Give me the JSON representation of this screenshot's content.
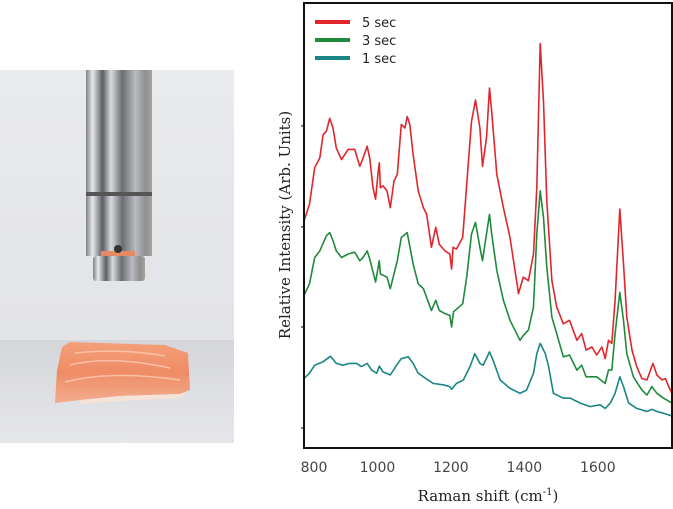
{
  "photo": {
    "description_icon": "raman-probe-over-salmon-photo"
  },
  "chart_data": {
    "type": "line",
    "title": "",
    "xlabel": "Raman shift (cm",
    "xlabel_sup": "-1",
    "xlabel_close": ")",
    "ylabel": "Relative Intensity (Arb. Units)",
    "xlim": [
      800,
      1802
    ],
    "ylim": [
      0,
      100
    ],
    "xticks": [
      800,
      1000,
      1200,
      1400,
      1600
    ],
    "xtick_labels": [
      "800",
      "1000",
      "1200",
      "1400",
      "1600"
    ],
    "yticks": [
      4.5,
      27.2,
      49.7,
      72.4
    ],
    "ytick_labels": [],
    "grid": false,
    "legend_placement": "top-left",
    "series": [
      {
        "name": "5 sec",
        "color": "#e0262b",
        "x": [
          800,
          815,
          829,
          843,
          852,
          861,
          870,
          879,
          888,
          902,
          920,
          938,
          952,
          961,
          972,
          979,
          988,
          995,
          1002,
          1005,
          1008,
          1015,
          1026,
          1035,
          1045,
          1054,
          1065,
          1075,
          1081,
          1088,
          1097,
          1111,
          1125,
          1134,
          1147,
          1159,
          1168,
          1184,
          1197,
          1202,
          1206,
          1215,
          1232,
          1243,
          1256,
          1267,
          1279,
          1286,
          1297,
          1305,
          1311,
          1325,
          1343,
          1361,
          1384,
          1397,
          1411,
          1425,
          1434,
          1443,
          1452,
          1461,
          1475,
          1488,
          1506,
          1523,
          1543,
          1556,
          1568,
          1584,
          1597,
          1611,
          1620,
          1629,
          1638,
          1647,
          1660,
          1670,
          1679,
          1693,
          1706,
          1720,
          1734,
          1750,
          1761,
          1775,
          1784,
          1793,
          1802
        ],
        "y": [
          51.0,
          54.8,
          63.0,
          65.2,
          70.4,
          71.2,
          74.1,
          71.9,
          67.4,
          64.8,
          67.1,
          67.1,
          63.3,
          65.2,
          67.8,
          65.2,
          58.5,
          55.9,
          62.2,
          64.1,
          58.5,
          58.9,
          57.8,
          54.0,
          60.0,
          61.5,
          72.7,
          71.9,
          74.5,
          72.7,
          66.0,
          57.8,
          54.0,
          52.5,
          45.1,
          49.6,
          45.8,
          44.3,
          43.6,
          40.2,
          45.1,
          44.7,
          47.3,
          59.2,
          73.4,
          78.2,
          71.9,
          63.3,
          69.7,
          80.9,
          75.6,
          61.5,
          54.0,
          47.3,
          34.7,
          38.4,
          37.6,
          43.6,
          58.5,
          90.9,
          77.9,
          55.5,
          37.6,
          31.7,
          27.9,
          28.7,
          24.2,
          25.7,
          22.0,
          22.7,
          20.9,
          22.7,
          20.1,
          24.2,
          23.5,
          33.2,
          53.7,
          41.4,
          29.4,
          22.0,
          18.3,
          15.6,
          15.3,
          19.0,
          16.4,
          15.3,
          15.6,
          13.8,
          12.3
        ]
      },
      {
        "name": "3 sec",
        "color": "#1f8a3c",
        "x": [
          800,
          815,
          829,
          843,
          861,
          870,
          879,
          888,
          902,
          920,
          938,
          952,
          961,
          972,
          979,
          995,
          1005,
          1008,
          1026,
          1035,
          1054,
          1065,
          1081,
          1097,
          1111,
          1125,
          1147,
          1159,
          1168,
          1184,
          1197,
          1202,
          1207,
          1232,
          1243,
          1256,
          1267,
          1279,
          1286,
          1297,
          1305,
          1311,
          1325,
          1343,
          1361,
          1388,
          1397,
          1411,
          1425,
          1434,
          1443,
          1452,
          1461,
          1475,
          1488,
          1506,
          1523,
          1543,
          1556,
          1568,
          1597,
          1620,
          1629,
          1638,
          1647,
          1660,
          1670,
          1679,
          1697,
          1720,
          1734,
          1747,
          1761,
          1779,
          1802
        ],
        "y": [
          34.3,
          36.9,
          42.8,
          44.3,
          47.7,
          48.4,
          46.6,
          44.3,
          42.8,
          43.6,
          44.0,
          42.1,
          42.8,
          44.3,
          42.5,
          37.3,
          42.1,
          39.1,
          38.4,
          35.8,
          42.1,
          47.3,
          48.4,
          41.4,
          36.9,
          35.8,
          30.9,
          33.2,
          30.9,
          30.2,
          29.8,
          27.2,
          30.6,
          32.4,
          38.4,
          48.1,
          50.7,
          45.1,
          42.1,
          48.1,
          52.5,
          48.1,
          39.9,
          33.2,
          28.7,
          24.2,
          25.3,
          26.5,
          31.7,
          48.1,
          57.8,
          51.8,
          40.6,
          29.4,
          25.7,
          20.5,
          20.9,
          17.5,
          18.6,
          16.0,
          16.0,
          14.5,
          17.5,
          17.5,
          25.7,
          35.0,
          28.7,
          21.2,
          16.0,
          13.0,
          11.9,
          13.8,
          12.3,
          11.2,
          10.1
        ]
      },
      {
        "name": "1 sec",
        "color": "#1a8585",
        "x": [
          800,
          815,
          829,
          852,
          872,
          888,
          906,
          924,
          943,
          956,
          972,
          984,
          998,
          1005,
          1015,
          1035,
          1052,
          1065,
          1084,
          1097,
          1111,
          1125,
          1152,
          1179,
          1197,
          1202,
          1215,
          1234,
          1252,
          1265,
          1279,
          1288,
          1305,
          1315,
          1334,
          1361,
          1388,
          1406,
          1425,
          1434,
          1443,
          1457,
          1466,
          1479,
          1506,
          1525,
          1552,
          1579,
          1606,
          1620,
          1634,
          1647,
          1660,
          1670,
          1684,
          1706,
          1734,
          1747,
          1761,
          1779,
          1802
        ],
        "y": [
          15.6,
          16.8,
          18.6,
          19.4,
          20.6,
          19.0,
          18.6,
          19.0,
          19.0,
          18.3,
          19.0,
          17.5,
          16.8,
          18.4,
          17.1,
          16.4,
          18.6,
          20.1,
          20.5,
          19.0,
          16.8,
          16.0,
          14.5,
          14.2,
          13.8,
          13.2,
          14.5,
          15.3,
          18.3,
          21.2,
          19.0,
          18.6,
          21.6,
          19.7,
          15.3,
          13.4,
          12.3,
          13.0,
          16.8,
          21.2,
          23.5,
          21.2,
          18.3,
          12.3,
          11.2,
          11.2,
          10.1,
          9.3,
          9.7,
          8.9,
          10.1,
          12.3,
          16.0,
          13.8,
          10.1,
          8.9,
          8.2,
          8.7,
          8.2,
          7.8,
          7.2
        ]
      }
    ]
  }
}
